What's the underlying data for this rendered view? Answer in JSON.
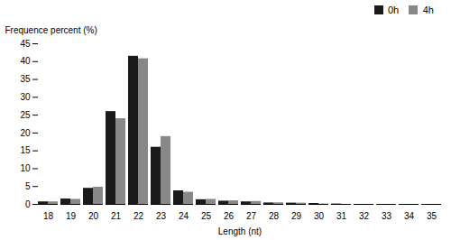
{
  "chart_data": {
    "type": "bar",
    "xlabel": "Length (nt)",
    "ylabel": "Frequence percent (%)",
    "categories": [
      18,
      19,
      20,
      21,
      22,
      23,
      24,
      25,
      26,
      27,
      28,
      29,
      30,
      31,
      32,
      33,
      34,
      35
    ],
    "series": [
      {
        "name": "0h",
        "color": "#1a1a1a",
        "values": [
          0.7,
          1.5,
          4.5,
          26.0,
          41.5,
          16.0,
          3.8,
          1.3,
          0.9,
          0.7,
          0.4,
          0.35,
          0.25,
          0.1,
          0.0,
          0.0,
          0.0,
          0.0
        ]
      },
      {
        "name": "4h",
        "color": "#888888",
        "values": [
          0.7,
          1.4,
          4.8,
          24.0,
          40.8,
          19.0,
          3.4,
          1.4,
          1.0,
          0.8,
          0.45,
          0.35,
          0.1,
          0.0,
          0.0,
          0.0,
          0.0,
          0.0
        ]
      }
    ],
    "ylim": [
      0,
      45
    ],
    "yticks": [
      0,
      5,
      10,
      15,
      20,
      25,
      30,
      35,
      40,
      45
    ],
    "legend": "upper right"
  }
}
